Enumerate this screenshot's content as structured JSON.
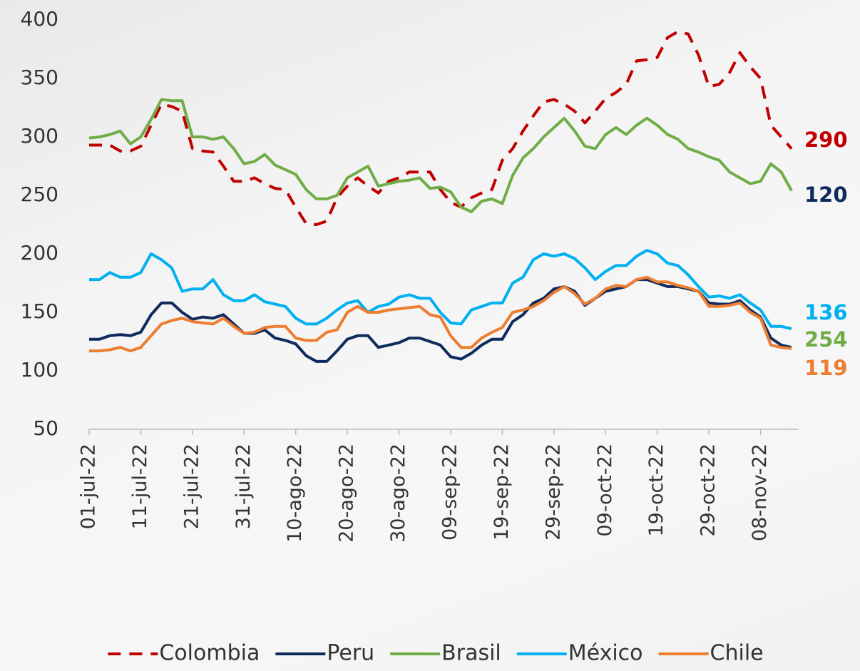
{
  "chart_data": {
    "type": "line",
    "categories": [
      "01-jul-22",
      null,
      null,
      null,
      null,
      "11-jul-22",
      null,
      null,
      null,
      null,
      "21-jul-22",
      null,
      null,
      null,
      null,
      "31-jul-22",
      null,
      null,
      null,
      null,
      "10-ago-22",
      null,
      null,
      null,
      null,
      "20-ago-22",
      null,
      null,
      null,
      null,
      "30-ago-22",
      null,
      null,
      null,
      null,
      "09-sep-22",
      null,
      null,
      null,
      null,
      "19-sep-22",
      null,
      null,
      null,
      null,
      "29-sep-22",
      null,
      null,
      null,
      null,
      "09-oct-22",
      null,
      null,
      null,
      null,
      "19-oct-22",
      null,
      null,
      null,
      null,
      "29-oct-22",
      null,
      null,
      null,
      null,
      "08-nov-22",
      null,
      null,
      null
    ],
    "ylim": [
      50,
      400
    ],
    "yticks": [
      50,
      100,
      150,
      200,
      250,
      300,
      350,
      400
    ],
    "grid": false,
    "legend": "bottom",
    "series": [
      {
        "name": "Colombia",
        "color": "#c00000",
        "line_style": "dashed",
        "values": [
          293,
          293,
          293,
          288,
          288,
          292,
          310,
          328,
          326,
          322,
          290,
          288,
          287,
          275,
          262,
          262,
          265,
          260,
          256,
          255,
          240,
          226,
          225,
          228,
          248,
          258,
          265,
          258,
          252,
          262,
          265,
          270,
          270,
          270,
          255,
          244,
          240,
          248,
          252,
          255,
          280,
          290,
          305,
          318,
          330,
          332,
          328,
          322,
          312,
          322,
          333,
          338,
          345,
          365,
          366,
          368,
          385,
          390,
          388,
          370,
          343,
          345,
          355,
          372,
          360,
          350,
          310,
          300,
          290
        ]
      },
      {
        "name": "Peru",
        "color": "#0f2a5c",
        "line_style": "solid",
        "values": [
          127,
          127,
          130,
          131,
          130,
          133,
          148,
          158,
          158,
          150,
          144,
          146,
          145,
          148,
          140,
          132,
          132,
          135,
          128,
          126,
          123,
          113,
          108,
          108,
          117,
          127,
          130,
          130,
          120,
          122,
          124,
          128,
          128,
          125,
          122,
          112,
          110,
          115,
          122,
          127,
          127,
          142,
          148,
          158,
          162,
          170,
          172,
          168,
          156,
          162,
          168,
          170,
          172,
          178,
          178,
          175,
          172,
          172,
          170,
          168,
          158,
          157,
          157,
          160,
          152,
          146,
          128,
          122,
          120
        ]
      },
      {
        "name": "Brasil",
        "color": "#70ad47",
        "line_style": "solid",
        "values": [
          299,
          300,
          302,
          305,
          294,
          300,
          315,
          332,
          331,
          331,
          300,
          300,
          298,
          300,
          290,
          277,
          279,
          285,
          276,
          272,
          268,
          255,
          247,
          247,
          250,
          265,
          270,
          275,
          258,
          260,
          262,
          263,
          265,
          256,
          257,
          253,
          240,
          236,
          245,
          247,
          243,
          267,
          282,
          290,
          300,
          308,
          316,
          305,
          292,
          290,
          302,
          308,
          302,
          310,
          316,
          310,
          302,
          298,
          290,
          287,
          283,
          280,
          270,
          265,
          260,
          262,
          277,
          270,
          254
        ]
      },
      {
        "name": "México",
        "color": "#00b0f0",
        "line_style": "solid",
        "values": [
          178,
          178,
          184,
          180,
          180,
          184,
          200,
          195,
          188,
          168,
          170,
          170,
          178,
          165,
          160,
          160,
          165,
          159,
          157,
          155,
          145,
          140,
          140,
          145,
          152,
          158,
          160,
          150,
          155,
          157,
          163,
          165,
          162,
          162,
          150,
          141,
          140,
          152,
          155,
          158,
          158,
          175,
          180,
          195,
          200,
          198,
          200,
          196,
          188,
          178,
          185,
          190,
          190,
          198,
          203,
          200,
          192,
          190,
          182,
          172,
          163,
          164,
          162,
          165,
          158,
          152,
          138,
          138,
          136
        ]
      },
      {
        "name": "Chile",
        "color": "#ed7d31",
        "line_style": "solid",
        "values": [
          117,
          117,
          118,
          120,
          117,
          120,
          130,
          140,
          143,
          145,
          142,
          141,
          140,
          145,
          138,
          132,
          133,
          137,
          138,
          138,
          128,
          126,
          126,
          133,
          135,
          150,
          155,
          150,
          150,
          152,
          153,
          154,
          155,
          148,
          146,
          130,
          120,
          120,
          128,
          133,
          137,
          150,
          152,
          155,
          160,
          167,
          172,
          166,
          157,
          162,
          170,
          173,
          172,
          178,
          180,
          176,
          176,
          173,
          171,
          168,
          155,
          155,
          156,
          158,
          150,
          145,
          122,
          120,
          119
        ]
      }
    ]
  }
}
